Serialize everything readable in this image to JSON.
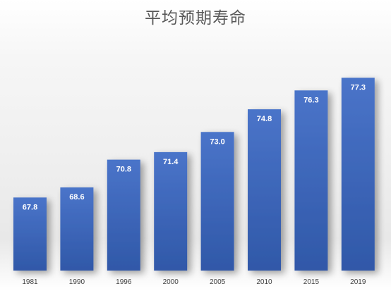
{
  "chart_data": {
    "type": "bar",
    "title": "平均预期寿命",
    "xlabel": "",
    "ylabel": "",
    "categories": [
      "1981",
      "1990",
      "1996",
      "2000",
      "2005",
      "2010",
      "2015",
      "2019"
    ],
    "values": [
      67.8,
      68.6,
      70.8,
      71.4,
      73.0,
      74.8,
      76.3,
      77.3
    ],
    "value_labels": [
      "67.8",
      "68.6",
      "70.8",
      "71.4",
      "73.0",
      "74.8",
      "76.3",
      "77.3"
    ],
    "ylim": [
      62,
      79
    ],
    "grid": false,
    "legend": "none",
    "colors": {
      "bar_top": "#4a74c9",
      "bar_bottom": "#3058a8",
      "label": "#ffffff",
      "title": "#595959",
      "tick": "#404040"
    }
  }
}
